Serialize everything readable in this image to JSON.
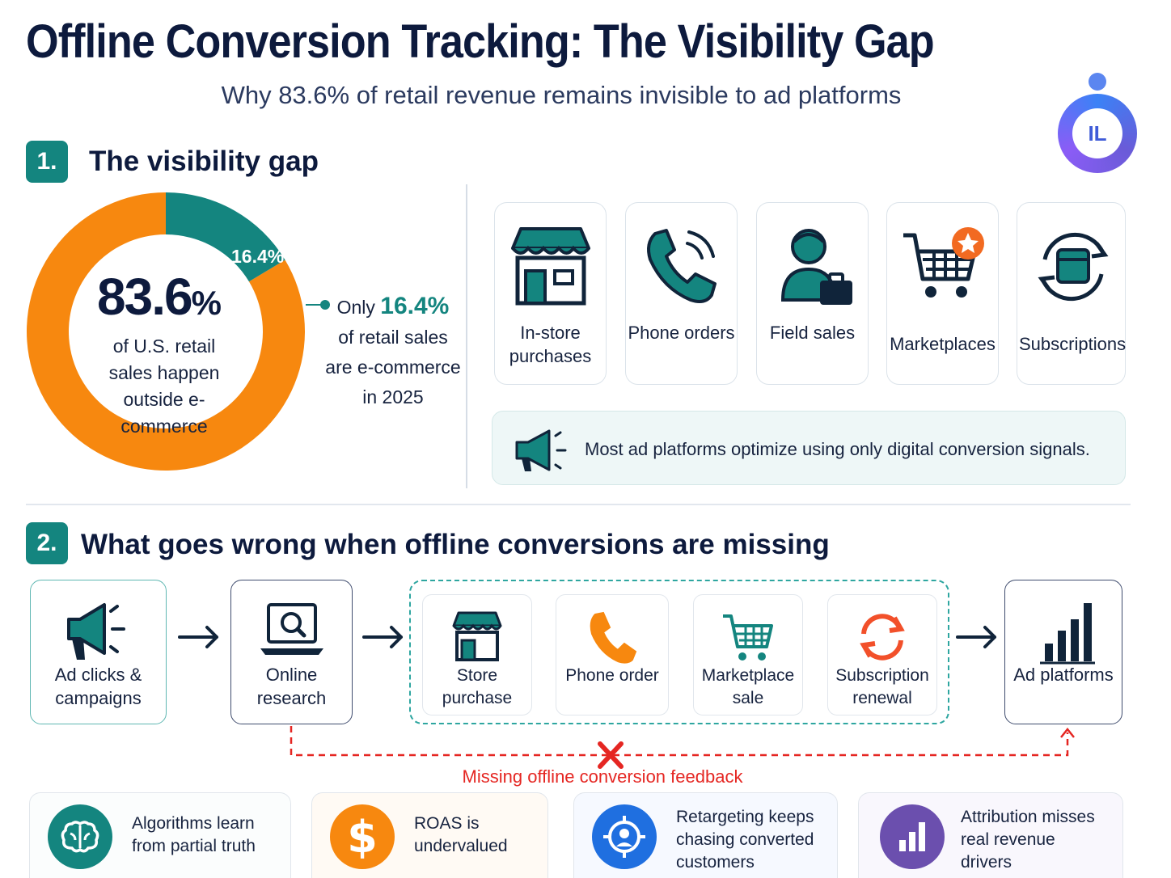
{
  "header": {
    "title": "Offline Conversion Tracking: The Visibility Gap",
    "subtitle": "Why 83.6% of retail revenue remains invisible to ad platforms",
    "logo_text": "IL"
  },
  "section1": {
    "number": "1.",
    "title": "The visibility gap",
    "donut": {
      "center_value": "83.6",
      "center_unit": "%",
      "center_caption": "of U.S. retail sales happen outside e-commerce",
      "segment_label": "16.4%",
      "offline_share": 83.6,
      "ecommerce_share": 16.4,
      "offline_color": "#f7880f",
      "ecommerce_color": "#14857f"
    },
    "callout": {
      "prefix": "Only",
      "highlight": "16.4%",
      "text": "of retail sales are e-commerce in 2025"
    },
    "channels": [
      {
        "label": "In-store purchases",
        "icon": "storefront-icon"
      },
      {
        "label": "Phone orders",
        "icon": "phone-ringing-icon"
      },
      {
        "label": "Field sales",
        "icon": "salesperson-briefcase-icon"
      },
      {
        "label": "Marketplaces",
        "icon": "shopping-cart-star-icon"
      },
      {
        "label": "Subscriptions",
        "icon": "subscription-cycle-icon"
      }
    ],
    "note": {
      "icon": "megaphone-icon",
      "text": "Most ad platforms optimize using only digital conversion signals."
    }
  },
  "section2": {
    "number": "2.",
    "title": "What goes wrong when offline conversions are missing",
    "flow": {
      "ad_clicks": "Ad clicks & campaigns",
      "online_research": "Online research",
      "offline": [
        {
          "label": "Store purchase",
          "icon": "store-icon"
        },
        {
          "label": "Phone order",
          "icon": "phone-icon"
        },
        {
          "label": "Marketplace sale",
          "icon": "cart-icon"
        },
        {
          "label": "Subscription renewal",
          "icon": "renewal-icon"
        }
      ],
      "ad_platforms": "Ad platforms"
    },
    "feedback_label": "Missing offline conversion feedback",
    "impacts": [
      {
        "text": "Algorithms learn from partial truth",
        "icon": "brain-icon",
        "color": "#14857f"
      },
      {
        "text": "ROAS is undervalued",
        "icon": "dollar-icon",
        "color": "#f7880f"
      },
      {
        "text": "Retargeting keeps chasing converted customers",
        "icon": "target-icon",
        "color": "#1f6fe0"
      },
      {
        "text": "Attribution misses real revenue drivers",
        "icon": "bar-chart-icon",
        "color": "#6b4fae"
      }
    ]
  }
}
